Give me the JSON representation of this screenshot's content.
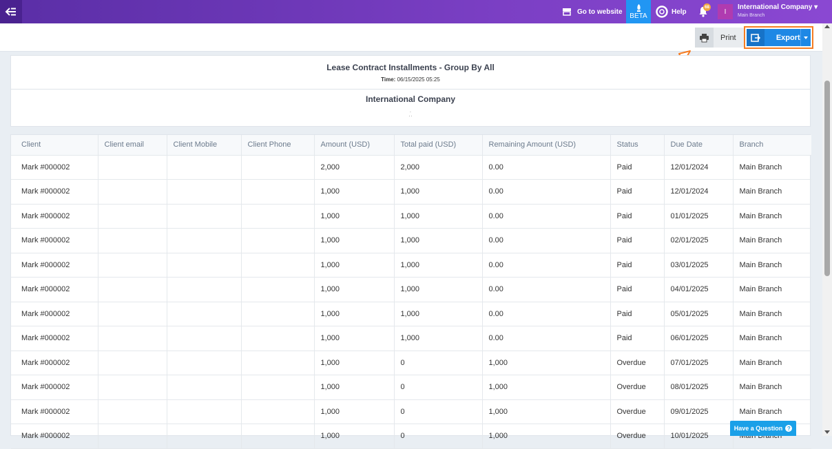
{
  "topbar": {
    "goto_label": "Go to website",
    "beta_label": "BETA",
    "help_label": "Help",
    "notification_count": "68",
    "avatar_letter": "I",
    "company_name": "International Company",
    "branch_name": "Main Branch"
  },
  "toolbar": {
    "print_label": "Print",
    "export_label": "Export"
  },
  "report": {
    "title": "Lease Contract Installments - Group By All",
    "time_label": "Time:",
    "time_value": "06/15/2025 05:25",
    "company": "International Company",
    "dots": ".\n. ."
  },
  "table": {
    "columns": [
      "Client",
      "Client email",
      "Client Mobile",
      "Client Phone",
      "Amount (USD)",
      "Total paid (USD)",
      "Remaining Amount (USD)",
      "Status",
      "Due Date",
      "Branch"
    ],
    "rows": [
      [
        "Mark #000002",
        "",
        "",
        "",
        "2,000",
        "2,000",
        "0.00",
        "Paid",
        "12/01/2024",
        "Main Branch"
      ],
      [
        "Mark #000002",
        "",
        "",
        "",
        "1,000",
        "1,000",
        "0.00",
        "Paid",
        "12/01/2024",
        "Main Branch"
      ],
      [
        "Mark #000002",
        "",
        "",
        "",
        "1,000",
        "1,000",
        "0.00",
        "Paid",
        "01/01/2025",
        "Main Branch"
      ],
      [
        "Mark #000002",
        "",
        "",
        "",
        "1,000",
        "1,000",
        "0.00",
        "Paid",
        "02/01/2025",
        "Main Branch"
      ],
      [
        "Mark #000002",
        "",
        "",
        "",
        "1,000",
        "1,000",
        "0.00",
        "Paid",
        "03/01/2025",
        "Main Branch"
      ],
      [
        "Mark #000002",
        "",
        "",
        "",
        "1,000",
        "1,000",
        "0.00",
        "Paid",
        "04/01/2025",
        "Main Branch"
      ],
      [
        "Mark #000002",
        "",
        "",
        "",
        "1,000",
        "1,000",
        "0.00",
        "Paid",
        "05/01/2025",
        "Main Branch"
      ],
      [
        "Mark #000002",
        "",
        "",
        "",
        "1,000",
        "1,000",
        "0.00",
        "Paid",
        "06/01/2025",
        "Main Branch"
      ],
      [
        "Mark #000002",
        "",
        "",
        "",
        "1,000",
        "0",
        "1,000",
        "Overdue",
        "07/01/2025",
        "Main Branch"
      ],
      [
        "Mark #000002",
        "",
        "",
        "",
        "1,000",
        "0",
        "1,000",
        "Overdue",
        "08/01/2025",
        "Main Branch"
      ],
      [
        "Mark #000002",
        "",
        "",
        "",
        "1,000",
        "0",
        "1,000",
        "Overdue",
        "09/01/2025",
        "Main Branch"
      ],
      [
        "Mark #000002",
        "",
        "",
        "",
        "1,000",
        "0",
        "1,000",
        "Overdue",
        "10/01/2025",
        "Main Branch"
      ]
    ]
  },
  "help_widget": {
    "label": "Have a Question",
    "icon": "?"
  },
  "icons": {
    "menu": "menu-collapse-icon",
    "website": "store-icon",
    "beta": "rocket-icon",
    "help": "lifebuoy-icon",
    "bell": "bell-icon",
    "print": "printer-icon",
    "export": "export-icon"
  },
  "colors": {
    "topbar": "#7b3fc4",
    "beta": "#2196f3",
    "export": "#1e88e5",
    "highlight": "#f57c22"
  }
}
